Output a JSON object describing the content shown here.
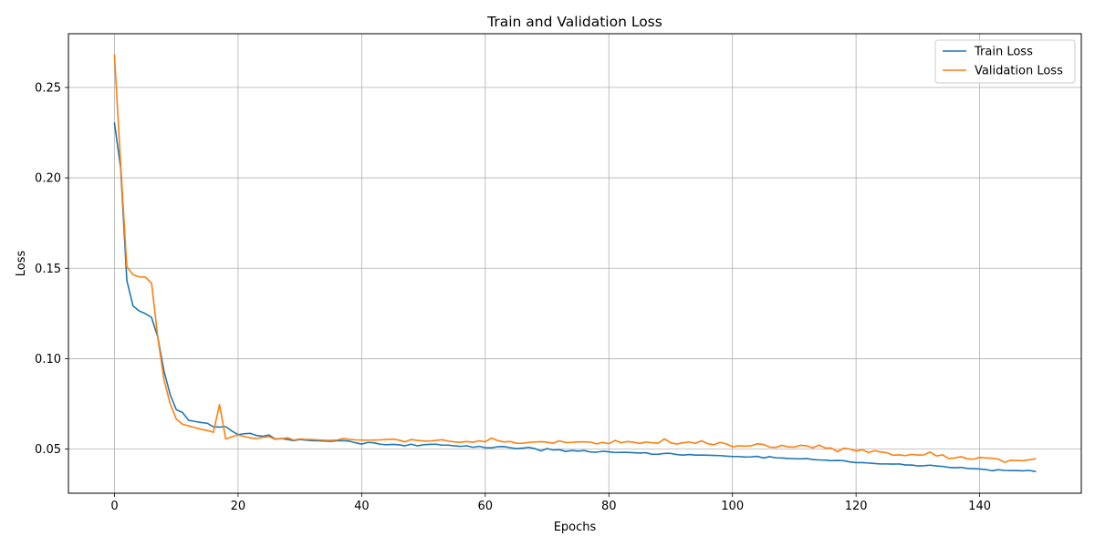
{
  "chart_data": {
    "type": "line",
    "title": "Train and Validation Loss",
    "xlabel": "Epochs",
    "ylabel": "Loss",
    "xlim": [
      -7.45,
      156.45
    ],
    "ylim": [
      0.0256,
      0.2797
    ],
    "xticks": [
      0,
      20,
      40,
      60,
      80,
      100,
      120,
      140
    ],
    "yticks": [
      0.05,
      0.1,
      0.15,
      0.2,
      0.25
    ],
    "ytick_labels": [
      "0.05",
      "0.10",
      "0.15",
      "0.20",
      "0.25"
    ],
    "grid": true,
    "legend_position": "top-right",
    "series": [
      {
        "name": "Train Loss",
        "color": "#1f77b4",
        "values": [
          0.2303,
          0.2054,
          0.1433,
          0.1292,
          0.1264,
          0.1249,
          0.1228,
          0.112,
          0.0934,
          0.0803,
          0.0718,
          0.0703,
          0.0659,
          0.0653,
          0.0647,
          0.0643,
          0.0623,
          0.0622,
          0.0624,
          0.06,
          0.058,
          0.0585,
          0.0587,
          0.0575,
          0.0571,
          0.0578,
          0.0556,
          0.0558,
          0.0553,
          0.0547,
          0.0553,
          0.0549,
          0.0547,
          0.0546,
          0.0544,
          0.0543,
          0.0546,
          0.0547,
          0.0544,
          0.0535,
          0.0528,
          0.0537,
          0.0535,
          0.0527,
          0.0524,
          0.0526,
          0.0524,
          0.0518,
          0.0527,
          0.0518,
          0.0524,
          0.0526,
          0.0527,
          0.0522,
          0.0522,
          0.0518,
          0.0515,
          0.0518,
          0.051,
          0.0515,
          0.0508,
          0.0507,
          0.0513,
          0.0514,
          0.0508,
          0.0503,
          0.0505,
          0.051,
          0.0503,
          0.049,
          0.0503,
          0.0495,
          0.0497,
          0.0487,
          0.0492,
          0.0489,
          0.0492,
          0.0484,
          0.0483,
          0.0488,
          0.0485,
          0.0481,
          0.0482,
          0.0482,
          0.048,
          0.0478,
          0.048,
          0.0471,
          0.0472,
          0.0476,
          0.0476,
          0.047,
          0.0467,
          0.047,
          0.0467,
          0.0467,
          0.0466,
          0.0465,
          0.0464,
          0.0461,
          0.0459,
          0.0459,
          0.0456,
          0.0457,
          0.046,
          0.0451,
          0.0458,
          0.0452,
          0.0451,
          0.0448,
          0.0447,
          0.0446,
          0.0448,
          0.0442,
          0.044,
          0.0439,
          0.0436,
          0.0437,
          0.0436,
          0.0429,
          0.0425,
          0.0425,
          0.0423,
          0.042,
          0.0418,
          0.0418,
          0.0417,
          0.0418,
          0.0412,
          0.0412,
          0.0407,
          0.0408,
          0.0411,
          0.0407,
          0.0404,
          0.0399,
          0.0397,
          0.0399,
          0.0393,
          0.0392,
          0.039,
          0.0387,
          0.038,
          0.0386,
          0.0382,
          0.0381,
          0.0381,
          0.038,
          0.0382,
          0.0376
        ]
      },
      {
        "name": "Validation Loss",
        "color": "#ff7f0e",
        "values": [
          0.2679,
          0.2075,
          0.1509,
          0.1464,
          0.1452,
          0.1451,
          0.1418,
          0.112,
          0.0886,
          0.0752,
          0.0666,
          0.0638,
          0.0628,
          0.0619,
          0.061,
          0.0603,
          0.0593,
          0.0746,
          0.0556,
          0.0568,
          0.0578,
          0.057,
          0.0562,
          0.0558,
          0.0565,
          0.0569,
          0.0554,
          0.0557,
          0.0563,
          0.055,
          0.0556,
          0.0553,
          0.0553,
          0.0551,
          0.0549,
          0.0548,
          0.055,
          0.0558,
          0.0554,
          0.0551,
          0.055,
          0.0549,
          0.055,
          0.0551,
          0.0553,
          0.0555,
          0.055,
          0.054,
          0.0553,
          0.0548,
          0.0545,
          0.0544,
          0.0548,
          0.0552,
          0.0544,
          0.054,
          0.0538,
          0.0542,
          0.0538,
          0.0546,
          0.054,
          0.0561,
          0.0547,
          0.054,
          0.0542,
          0.0533,
          0.0532,
          0.0537,
          0.0539,
          0.0541,
          0.0538,
          0.0532,
          0.0546,
          0.0536,
          0.0537,
          0.054,
          0.054,
          0.0539,
          0.0529,
          0.0537,
          0.053,
          0.0548,
          0.0535,
          0.0542,
          0.0538,
          0.0531,
          0.0539,
          0.0535,
          0.0533,
          0.0557,
          0.0535,
          0.0528,
          0.0535,
          0.0539,
          0.0532,
          0.0546,
          0.053,
          0.0524,
          0.0537,
          0.0529,
          0.0513,
          0.0518,
          0.0516,
          0.0518,
          0.0529,
          0.0526,
          0.0511,
          0.0509,
          0.0521,
          0.0512,
          0.0511,
          0.0521,
          0.0518,
          0.0507,
          0.0522,
          0.0506,
          0.0506,
          0.0486,
          0.0505,
          0.05,
          0.0489,
          0.0497,
          0.0481,
          0.0491,
          0.0484,
          0.048,
          0.0466,
          0.0468,
          0.0464,
          0.0471,
          0.0467,
          0.0468,
          0.0484,
          0.0462,
          0.0468,
          0.0448,
          0.0451,
          0.0458,
          0.0446,
          0.0444,
          0.0454,
          0.0451,
          0.0449,
          0.0445,
          0.0427,
          0.0438,
          0.0437,
          0.0436,
          0.0441,
          0.0446
        ]
      }
    ]
  }
}
